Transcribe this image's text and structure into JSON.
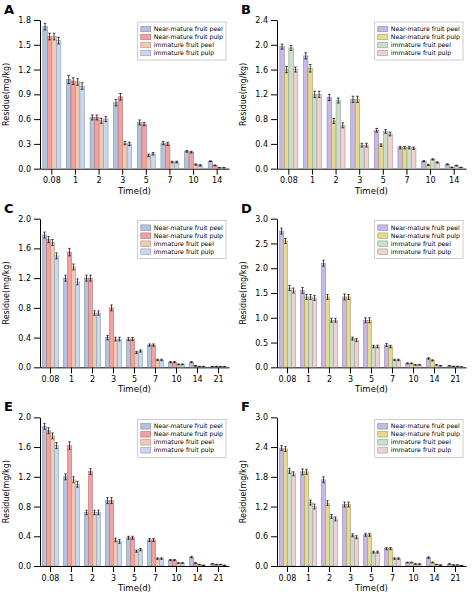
{
  "chart_data": [
    {
      "type": "bar",
      "title": "A",
      "x_label": "Time(d)",
      "y_label": "Residue(mg/kg)",
      "categories": [
        "0.08",
        "1",
        "2",
        "3",
        "5",
        "7",
        "10",
        "14"
      ],
      "ylim": [
        0,
        1.8
      ],
      "yticks": [
        {
          "value": 0.0,
          "label": "0.0"
        },
        0.3,
        0.6,
        0.9,
        1.2,
        1.5,
        1.8
      ],
      "grid": false,
      "legend": "upper-right",
      "series": [
        {
          "name": "Near-mature fruit peel",
          "color": "#b0c4de",
          "values": [
            1.72,
            1.08,
            0.62,
            0.8,
            0.56,
            0.31,
            0.21,
            0.09
          ],
          "errors": [
            0.04,
            0.05,
            0.03,
            0.04,
            0.03,
            0.02,
            0.01,
            0.005
          ]
        },
        {
          "name": "Near-mature fruit pulp",
          "color": "#f4a0a0",
          "values": [
            1.6,
            1.06,
            0.62,
            0.87,
            0.54,
            0.3,
            0.2,
            0.04
          ],
          "errors": [
            0.04,
            0.04,
            0.03,
            0.04,
            0.02,
            0.02,
            0.01,
            0.005
          ]
        },
        {
          "name": "immature fruit peel",
          "color": "#f4c8b0",
          "values": [
            1.6,
            1.05,
            0.58,
            0.31,
            0.16,
            0.08,
            0.05,
            0.01
          ],
          "errors": [
            0.04,
            0.04,
            0.03,
            0.02,
            0.015,
            0.01,
            0.008,
            0.003
          ]
        },
        {
          "name": "immature fruit pulp",
          "color": "#c8d8f0",
          "values": [
            1.55,
            1.0,
            0.6,
            0.3,
            0.18,
            0.08,
            0.04,
            0.01
          ],
          "errors": [
            0.04,
            0.04,
            0.03,
            0.02,
            0.015,
            0.01,
            0.008,
            0.003
          ]
        }
      ]
    },
    {
      "type": "bar",
      "title": "B",
      "x_label": "Time(d)",
      "y_label": "Residue(mg/kg)",
      "categories": [
        "0.08",
        "1",
        "2",
        "3",
        "5",
        "7",
        "10",
        "14"
      ],
      "ylim": [
        0,
        2.4
      ],
      "yticks": [
        {
          "value": 0.0,
          "label": "0.0"
        },
        0.4,
        0.8,
        1.2,
        1.6,
        {
          "value": 2.0,
          "label": "2.0"
        },
        2.4
      ],
      "grid": false,
      "legend": "upper-right",
      "series": [
        {
          "name": "Near-mature fruit peel",
          "color": "#c8b8e8",
          "values": [
            1.97,
            1.82,
            1.15,
            1.12,
            0.62,
            0.34,
            0.12,
            0.07
          ],
          "errors": [
            0.04,
            0.05,
            0.05,
            0.05,
            0.03,
            0.02,
            0.01,
            0.008
          ]
        },
        {
          "name": "Near-mature fruit pulp",
          "color": "#e8d890",
          "values": [
            1.6,
            1.62,
            0.77,
            1.12,
            0.38,
            0.34,
            0.06,
            0.02
          ],
          "errors": [
            0.05,
            0.06,
            0.04,
            0.05,
            0.02,
            0.02,
            0.01,
            0.005
          ]
        },
        {
          "name": "immature fruit peel",
          "color": "#c8e0c8",
          "values": [
            1.95,
            1.2,
            1.1,
            0.38,
            0.6,
            0.34,
            0.15,
            0.05
          ],
          "errors": [
            0.04,
            0.05,
            0.04,
            0.03,
            0.03,
            0.02,
            0.01,
            0.006
          ]
        },
        {
          "name": "immature fruit pulp",
          "color": "#f0d0d0",
          "values": [
            1.6,
            1.2,
            0.7,
            0.38,
            0.56,
            0.33,
            0.1,
            0.02
          ],
          "errors": [
            0.04,
            0.05,
            0.04,
            0.03,
            0.03,
            0.02,
            0.01,
            0.004
          ]
        }
      ]
    },
    {
      "type": "bar",
      "title": "C",
      "x_label": "Time(d)",
      "y_label": "Residue(mg/kg)",
      "categories": [
        "0.08",
        "1",
        "2",
        "3",
        "5",
        "7",
        "10",
        "14",
        "21"
      ],
      "ylim": [
        0,
        2.0
      ],
      "yticks": [
        {
          "value": 0.0,
          "label": "0.0"
        },
        0.4,
        0.8,
        1.2,
        1.6,
        {
          "value": 2.0,
          "label": "2.0"
        }
      ],
      "grid": false,
      "legend": "upper-right",
      "series": [
        {
          "name": "Near-mature fruit peel",
          "color": "#b0c4de",
          "values": [
            1.78,
            1.2,
            1.2,
            0.4,
            0.38,
            0.3,
            0.07,
            0.07,
            0.01
          ],
          "errors": [
            0.04,
            0.04,
            0.04,
            0.03,
            0.02,
            0.015,
            0.008,
            0.007,
            0.003
          ]
        },
        {
          "name": "Near-mature fruit pulp",
          "color": "#f4a0a0",
          "values": [
            1.72,
            1.55,
            1.2,
            0.8,
            0.38,
            0.3,
            0.07,
            0.02,
            0.01
          ],
          "errors": [
            0.04,
            0.05,
            0.04,
            0.04,
            0.02,
            0.015,
            0.008,
            0.004,
            0.003
          ]
        },
        {
          "name": "immature fruit peel",
          "color": "#f4c8b0",
          "values": [
            1.68,
            1.35,
            0.73,
            0.38,
            0.2,
            0.1,
            0.04,
            0.01,
            0.01
          ],
          "errors": [
            0.04,
            0.04,
            0.03,
            0.025,
            0.015,
            0.01,
            0.006,
            0.003,
            0.002
          ]
        },
        {
          "name": "immature fruit pulp",
          "color": "#c8d8f0",
          "values": [
            1.5,
            1.15,
            0.73,
            0.38,
            0.22,
            0.1,
            0.04,
            0.01,
            0.01
          ],
          "errors": [
            0.04,
            0.04,
            0.03,
            0.025,
            0.015,
            0.01,
            0.006,
            0.003,
            0.002
          ]
        }
      ]
    },
    {
      "type": "bar",
      "title": "D",
      "x_label": "Time(d)",
      "y_label": "Residue(mg/kg)",
      "categories": [
        "0.08",
        "1",
        "2",
        "3",
        "5",
        "7",
        "10",
        "14",
        "21"
      ],
      "ylim": [
        0,
        3.0
      ],
      "yticks": [
        {
          "value": 0.0,
          "label": "0.0"
        },
        0.5,
        {
          "value": 1.0,
          "label": "1.0"
        },
        1.5,
        {
          "value": 2.0,
          "label": "2.0"
        },
        2.5,
        {
          "value": 3.0,
          "label": "3.0"
        }
      ],
      "grid": false,
      "legend": "upper-right",
      "series": [
        {
          "name": "Near-mature fruit peel",
          "color": "#c8b8e8",
          "values": [
            2.75,
            1.55,
            2.1,
            1.42,
            0.95,
            0.45,
            0.08,
            0.18,
            0.03
          ],
          "errors": [
            0.06,
            0.06,
            0.06,
            0.06,
            0.05,
            0.03,
            0.01,
            0.015,
            0.005
          ]
        },
        {
          "name": "Near-mature fruit pulp",
          "color": "#e8d890",
          "values": [
            2.55,
            1.42,
            1.42,
            1.42,
            0.95,
            0.42,
            0.08,
            0.14,
            0.02
          ],
          "errors": [
            0.05,
            0.05,
            0.05,
            0.05,
            0.05,
            0.025,
            0.01,
            0.012,
            0.004
          ]
        },
        {
          "name": "immature fruit peel",
          "color": "#c8e0c8",
          "values": [
            1.6,
            1.42,
            0.95,
            0.58,
            0.42,
            0.15,
            0.05,
            0.05,
            0.02
          ],
          "errors": [
            0.05,
            0.05,
            0.04,
            0.03,
            0.025,
            0.015,
            0.008,
            0.008,
            0.004
          ]
        },
        {
          "name": "immature fruit pulp",
          "color": "#f0d0d0",
          "values": [
            1.55,
            1.4,
            0.95,
            0.55,
            0.42,
            0.15,
            0.05,
            0.03,
            0.01
          ],
          "errors": [
            0.05,
            0.05,
            0.04,
            0.03,
            0.025,
            0.015,
            0.008,
            0.006,
            0.003
          ]
        }
      ]
    },
    {
      "type": "bar",
      "title": "E",
      "x_label": "Time(d)",
      "y_label": "Residue(mg/kg)",
      "categories": [
        "0.08",
        "1",
        "2",
        "3",
        "5",
        "7",
        "10",
        "14",
        "21"
      ],
      "ylim": [
        0,
        2.0
      ],
      "yticks": [
        {
          "value": 0.0,
          "label": "0.0"
        },
        0.4,
        0.8,
        1.2,
        1.6,
        {
          "value": 2.0,
          "label": "2.0"
        }
      ],
      "grid": false,
      "legend": "upper-right",
      "series": [
        {
          "name": "Near-mature fruit peel",
          "color": "#b0c4de",
          "values": [
            1.88,
            1.2,
            0.72,
            0.88,
            0.38,
            0.35,
            0.08,
            0.12,
            0.03
          ],
          "errors": [
            0.04,
            0.04,
            0.03,
            0.04,
            0.02,
            0.02,
            0.008,
            0.01,
            0.004
          ]
        },
        {
          "name": "Near-mature fruit pulp",
          "color": "#f4a0a0",
          "values": [
            1.82,
            1.62,
            1.27,
            0.88,
            0.38,
            0.35,
            0.08,
            0.04,
            0.02
          ],
          "errors": [
            0.04,
            0.05,
            0.04,
            0.04,
            0.02,
            0.02,
            0.008,
            0.006,
            0.003
          ]
        },
        {
          "name": "immature fruit peel",
          "color": "#f4c8b0",
          "values": [
            1.75,
            1.16,
            0.72,
            0.35,
            0.2,
            0.1,
            0.04,
            0.02,
            0.02
          ],
          "errors": [
            0.04,
            0.04,
            0.03,
            0.025,
            0.015,
            0.01,
            0.006,
            0.004,
            0.003
          ]
        },
        {
          "name": "immature fruit pulp",
          "color": "#c8d8f0",
          "values": [
            1.62,
            1.1,
            0.72,
            0.33,
            0.22,
            0.1,
            0.04,
            0.01,
            0.01
          ],
          "errors": [
            0.04,
            0.04,
            0.03,
            0.025,
            0.015,
            0.01,
            0.006,
            0.003,
            0.002
          ]
        }
      ]
    },
    {
      "type": "bar",
      "title": "F",
      "x_label": "Time(d)",
      "y_label": "Residue(mg/kg)",
      "categories": [
        "0.08",
        "1",
        "2",
        "3",
        "5",
        "7",
        "10",
        "14",
        "21"
      ],
      "ylim": [
        0,
        3.0
      ],
      "yticks": [
        {
          "value": 0.0,
          "label": "0.0"
        },
        0.6,
        1.2,
        1.8,
        2.4,
        {
          "value": 3.0,
          "label": "3.0"
        }
      ],
      "grid": false,
      "legend": "upper-right",
      "series": [
        {
          "name": "Near-mature fruit peel",
          "color": "#c8b8e8",
          "values": [
            2.38,
            1.9,
            1.74,
            1.24,
            0.63,
            0.35,
            0.07,
            0.17,
            0.04
          ],
          "errors": [
            0.05,
            0.06,
            0.06,
            0.05,
            0.03,
            0.02,
            0.008,
            0.015,
            0.005
          ]
        },
        {
          "name": "Near-mature fruit pulp",
          "color": "#e8d890",
          "values": [
            2.36,
            1.9,
            1.27,
            1.24,
            0.63,
            0.35,
            0.07,
            0.07,
            0.02
          ],
          "errors": [
            0.05,
            0.05,
            0.05,
            0.05,
            0.03,
            0.02,
            0.008,
            0.01,
            0.004
          ]
        },
        {
          "name": "immature fruit peel",
          "color": "#c8e0c8",
          "values": [
            1.92,
            1.28,
            1.0,
            0.62,
            0.28,
            0.15,
            0.04,
            0.03,
            0.02
          ],
          "errors": [
            0.05,
            0.05,
            0.04,
            0.03,
            0.02,
            0.015,
            0.006,
            0.005,
            0.003
          ]
        },
        {
          "name": "immature fruit pulp",
          "color": "#f0d0d0",
          "values": [
            1.86,
            1.2,
            0.95,
            0.58,
            0.28,
            0.15,
            0.04,
            0.02,
            0.01
          ],
          "errors": [
            0.04,
            0.05,
            0.04,
            0.03,
            0.02,
            0.015,
            0.006,
            0.004,
            0.002
          ]
        }
      ]
    }
  ]
}
